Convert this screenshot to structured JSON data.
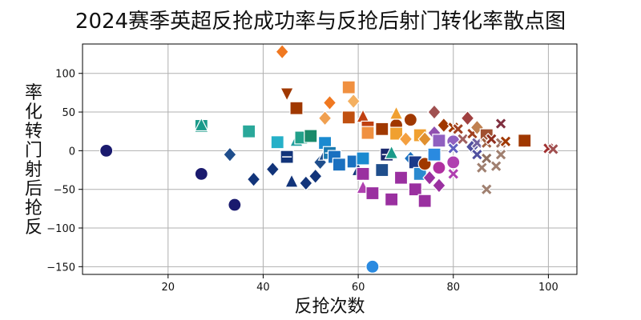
{
  "chart_data": {
    "type": "scatter",
    "title": "2024赛季英超反抢成功率与反抢后射门转化率散点图",
    "xlabel": "反抢次数",
    "ylabel": "率化转门射后抢反",
    "xlim": [
      2,
      106
    ],
    "ylim": [
      -160,
      138
    ],
    "xticks": [
      20,
      40,
      60,
      80,
      100
    ],
    "yticks": [
      -150,
      -100,
      -50,
      0,
      50,
      100
    ],
    "grid": true,
    "legend": null,
    "points": [
      {
        "x": 7,
        "y": 0,
        "marker": "circle",
        "color": "#1a1a6e"
      },
      {
        "x": 27,
        "y": -30,
        "marker": "circle",
        "color": "#1a1a6e"
      },
      {
        "x": 34,
        "y": -70,
        "marker": "circle",
        "color": "#1a1a6e"
      },
      {
        "x": 27,
        "y": 32,
        "marker": "square",
        "color": "#1a9a8a"
      },
      {
        "x": 27,
        "y": 33,
        "marker": "triangle",
        "color": "#1a9a8a"
      },
      {
        "x": 33,
        "y": -5,
        "marker": "diamond",
        "color": "#1f4e8c"
      },
      {
        "x": 37,
        "y": 25,
        "marker": "square",
        "color": "#2aa89a"
      },
      {
        "x": 38,
        "y": -37,
        "marker": "diamond",
        "color": "#12347a"
      },
      {
        "x": 42,
        "y": -24,
        "marker": "diamond",
        "color": "#12347a"
      },
      {
        "x": 43,
        "y": 11,
        "marker": "square",
        "color": "#26b0c8"
      },
      {
        "x": 44,
        "y": 128,
        "marker": "diamond",
        "color": "#f07820"
      },
      {
        "x": 45,
        "y": 74,
        "marker": "triangle-down",
        "color": "#a03800"
      },
      {
        "x": 45,
        "y": -8,
        "marker": "square-x",
        "color": "#12347a"
      },
      {
        "x": 46,
        "y": -40,
        "marker": "triangle",
        "color": "#12347a"
      },
      {
        "x": 47,
        "y": 55,
        "marker": "square",
        "color": "#a03800"
      },
      {
        "x": 47,
        "y": 13,
        "marker": "triangle",
        "color": "#22a0a0"
      },
      {
        "x": 48,
        "y": 17,
        "marker": "square",
        "color": "#22a08a"
      },
      {
        "x": 49,
        "y": -42,
        "marker": "diamond",
        "color": "#12347a"
      },
      {
        "x": 50,
        "y": 19,
        "marker": "square",
        "color": "#1a8a6a"
      },
      {
        "x": 51,
        "y": -33,
        "marker": "diamond",
        "color": "#12347a"
      },
      {
        "x": 52,
        "y": -15,
        "marker": "diamond",
        "color": "#1f4e8c"
      },
      {
        "x": 53,
        "y": 42,
        "marker": "diamond",
        "color": "#f0a050"
      },
      {
        "x": 53,
        "y": 10,
        "marker": "square",
        "color": "#1a8ad0"
      },
      {
        "x": 53,
        "y": -5,
        "marker": "triangle",
        "color": "#1f4e8c"
      },
      {
        "x": 54,
        "y": 62,
        "marker": "diamond",
        "color": "#f07820"
      },
      {
        "x": 54,
        "y": -3,
        "marker": "square-x",
        "color": "#1a7ab0"
      },
      {
        "x": 55,
        "y": -8,
        "marker": "square",
        "color": "#1a70c0"
      },
      {
        "x": 56,
        "y": -18,
        "marker": "square",
        "color": "#1a70c0"
      },
      {
        "x": 58,
        "y": 82,
        "marker": "square",
        "color": "#f09040"
      },
      {
        "x": 58,
        "y": 43,
        "marker": "square",
        "color": "#c05010"
      },
      {
        "x": 59,
        "y": 64,
        "marker": "diamond",
        "color": "#f4b060"
      },
      {
        "x": 59,
        "y": -14,
        "marker": "square",
        "color": "#1a70c0"
      },
      {
        "x": 60,
        "y": -25,
        "marker": "triangle",
        "color": "#12347a"
      },
      {
        "x": 61,
        "y": 44,
        "marker": "triangle",
        "color": "#c04010"
      },
      {
        "x": 61,
        "y": -10,
        "marker": "square",
        "color": "#1a8ad0"
      },
      {
        "x": 61,
        "y": -30,
        "marker": "square",
        "color": "#9a30a0"
      },
      {
        "x": 61,
        "y": -48,
        "marker": "triangle",
        "color": "#b040b0"
      },
      {
        "x": 62,
        "y": 30,
        "marker": "square",
        "color": "#c04010"
      },
      {
        "x": 62,
        "y": 23,
        "marker": "square",
        "color": "#f09040"
      },
      {
        "x": 63,
        "y": -150,
        "marker": "circle",
        "color": "#2a8ae0"
      },
      {
        "x": 63,
        "y": -55,
        "marker": "square",
        "color": "#9a30a0"
      },
      {
        "x": 65,
        "y": 28,
        "marker": "square",
        "color": "#a03800"
      },
      {
        "x": 65,
        "y": -25,
        "marker": "square",
        "color": "#1f4e8c"
      },
      {
        "x": 66,
        "y": -5,
        "marker": "square-x",
        "color": "#1a2a6e"
      },
      {
        "x": 67,
        "y": -3,
        "marker": "triangle",
        "color": "#1a9a8a"
      },
      {
        "x": 67,
        "y": -63,
        "marker": "square",
        "color": "#9a30a0"
      },
      {
        "x": 68,
        "y": 33,
        "marker": "circle",
        "color": "#a03800"
      },
      {
        "x": 68,
        "y": 48,
        "marker": "triangle",
        "color": "#f0a030"
      },
      {
        "x": 68,
        "y": 22,
        "marker": "square",
        "color": "#f0a030"
      },
      {
        "x": 69,
        "y": -35,
        "marker": "square",
        "color": "#9a30a0"
      },
      {
        "x": 70,
        "y": 15,
        "marker": "diamond",
        "color": "#f4a040"
      },
      {
        "x": 71,
        "y": 40,
        "marker": "circle",
        "color": "#a03800"
      },
      {
        "x": 71,
        "y": -10,
        "marker": "diamond",
        "color": "#1a70c0"
      },
      {
        "x": 72,
        "y": -15,
        "marker": "square",
        "color": "#1a3a8a"
      },
      {
        "x": 72,
        "y": -50,
        "marker": "square",
        "color": "#9a30a0"
      },
      {
        "x": 73,
        "y": 20,
        "marker": "square",
        "color": "#f0a030"
      },
      {
        "x": 73,
        "y": -30,
        "marker": "square",
        "color": "#2a8ad0"
      },
      {
        "x": 74,
        "y": 15,
        "marker": "diamond",
        "color": "#e09030"
      },
      {
        "x": 74,
        "y": -17,
        "marker": "circle",
        "color": "#a03800"
      },
      {
        "x": 74,
        "y": -65,
        "marker": "square",
        "color": "#9a30a0"
      },
      {
        "x": 75,
        "y": -35,
        "marker": "diamond",
        "color": "#9a30a0"
      },
      {
        "x": 76,
        "y": 50,
        "marker": "diamond",
        "color": "#a05050"
      },
      {
        "x": 76,
        "y": 23,
        "marker": "diamond",
        "color": "#9050b0"
      },
      {
        "x": 76,
        "y": -5,
        "marker": "square",
        "color": "#2a8ae0"
      },
      {
        "x": 77,
        "y": 13,
        "marker": "square",
        "color": "#9060c0"
      },
      {
        "x": 77,
        "y": -22,
        "marker": "circle",
        "color": "#b030a0"
      },
      {
        "x": 77,
        "y": -45,
        "marker": "diamond",
        "color": "#9a30a0"
      },
      {
        "x": 78,
        "y": 33,
        "marker": "diamond",
        "color": "#a03800"
      },
      {
        "x": 80,
        "y": 30,
        "marker": "x",
        "color": "#a03800"
      },
      {
        "x": 80,
        "y": 12,
        "marker": "circle",
        "color": "#9060c0"
      },
      {
        "x": 80,
        "y": 3,
        "marker": "x",
        "color": "#6060c0"
      },
      {
        "x": 80,
        "y": -15,
        "marker": "circle",
        "color": "#b040b0"
      },
      {
        "x": 80,
        "y": -30,
        "marker": "x",
        "color": "#b040b0"
      },
      {
        "x": 81,
        "y": 28,
        "marker": "x",
        "color": "#a04020"
      },
      {
        "x": 82,
        "y": 15,
        "marker": "x",
        "color": "#a06060"
      },
      {
        "x": 83,
        "y": 42,
        "marker": "diamond",
        "color": "#a04040"
      },
      {
        "x": 84,
        "y": 22,
        "marker": "x",
        "color": "#a04020"
      },
      {
        "x": 84,
        "y": 5,
        "marker": "diamond",
        "color": "#5050a0"
      },
      {
        "x": 85,
        "y": 30,
        "marker": "diamond",
        "color": "#c08050"
      },
      {
        "x": 85,
        "y": 10,
        "marker": "x",
        "color": "#7060a0"
      },
      {
        "x": 85,
        "y": -5,
        "marker": "x",
        "color": "#5050a0"
      },
      {
        "x": 86,
        "y": -22,
        "marker": "x",
        "color": "#a08070"
      },
      {
        "x": 87,
        "y": 20,
        "marker": "square",
        "color": "#a05030"
      },
      {
        "x": 87,
        "y": 10,
        "marker": "x",
        "color": "#a06040"
      },
      {
        "x": 87,
        "y": -10,
        "marker": "x",
        "color": "#907060"
      },
      {
        "x": 87,
        "y": -50,
        "marker": "x",
        "color": "#a08070"
      },
      {
        "x": 88,
        "y": 15,
        "marker": "x",
        "color": "#903020"
      },
      {
        "x": 89,
        "y": -20,
        "marker": "x",
        "color": "#a08070"
      },
      {
        "x": 90,
        "y": 35,
        "marker": "x",
        "color": "#803040"
      },
      {
        "x": 90,
        "y": 10,
        "marker": "x",
        "color": "#a07060"
      },
      {
        "x": 90,
        "y": -5,
        "marker": "x",
        "color": "#a08070"
      },
      {
        "x": 91,
        "y": 12,
        "marker": "x",
        "color": "#a03800"
      },
      {
        "x": 95,
        "y": 13,
        "marker": "square",
        "color": "#a03800"
      },
      {
        "x": 100,
        "y": 3,
        "marker": "x",
        "color": "#a03030"
      },
      {
        "x": 101,
        "y": 2,
        "marker": "x",
        "color": "#a05050"
      }
    ]
  }
}
